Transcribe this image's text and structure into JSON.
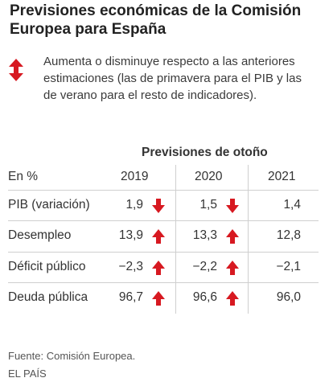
{
  "header": {
    "title": "Previsiones económicas de la Comisión Europea para España"
  },
  "legend": {
    "icon": "up-down-arrow-icon",
    "text": "Aumenta o disminuye respecto a las anteriores estimaciones (las de primavera para el PIB y las de verano para el resto de indicadores)."
  },
  "table": {
    "group_heading": "Previsiones de otoño",
    "unit_label": "En %",
    "years": [
      "2019",
      "2020",
      "2021"
    ],
    "rows": [
      {
        "label": "PIB (variación)",
        "v2019": "1,9",
        "a2019": "down",
        "v2020": "1,5",
        "a2020": "down",
        "v2021": "1,4"
      },
      {
        "label": "Desempleo",
        "v2019": "13,9",
        "a2019": "up",
        "v2020": "13,3",
        "a2020": "up",
        "v2021": "12,8"
      },
      {
        "label": "Déficit público",
        "v2019": "−2,3",
        "a2019": "up",
        "v2020": "−2,2",
        "a2020": "up",
        "v2021": "−2,1"
      },
      {
        "label": "Deuda pública",
        "v2019": "96,7",
        "a2019": "up",
        "v2020": "96,6",
        "a2020": "up",
        "v2021": "96,0"
      }
    ]
  },
  "footer": {
    "source": "Fuente: Comisión Europea.",
    "publisher": "EL PAÍS"
  },
  "colors": {
    "arrow": "#d71921",
    "text": "#333333",
    "separator": "#cfcfcf"
  }
}
